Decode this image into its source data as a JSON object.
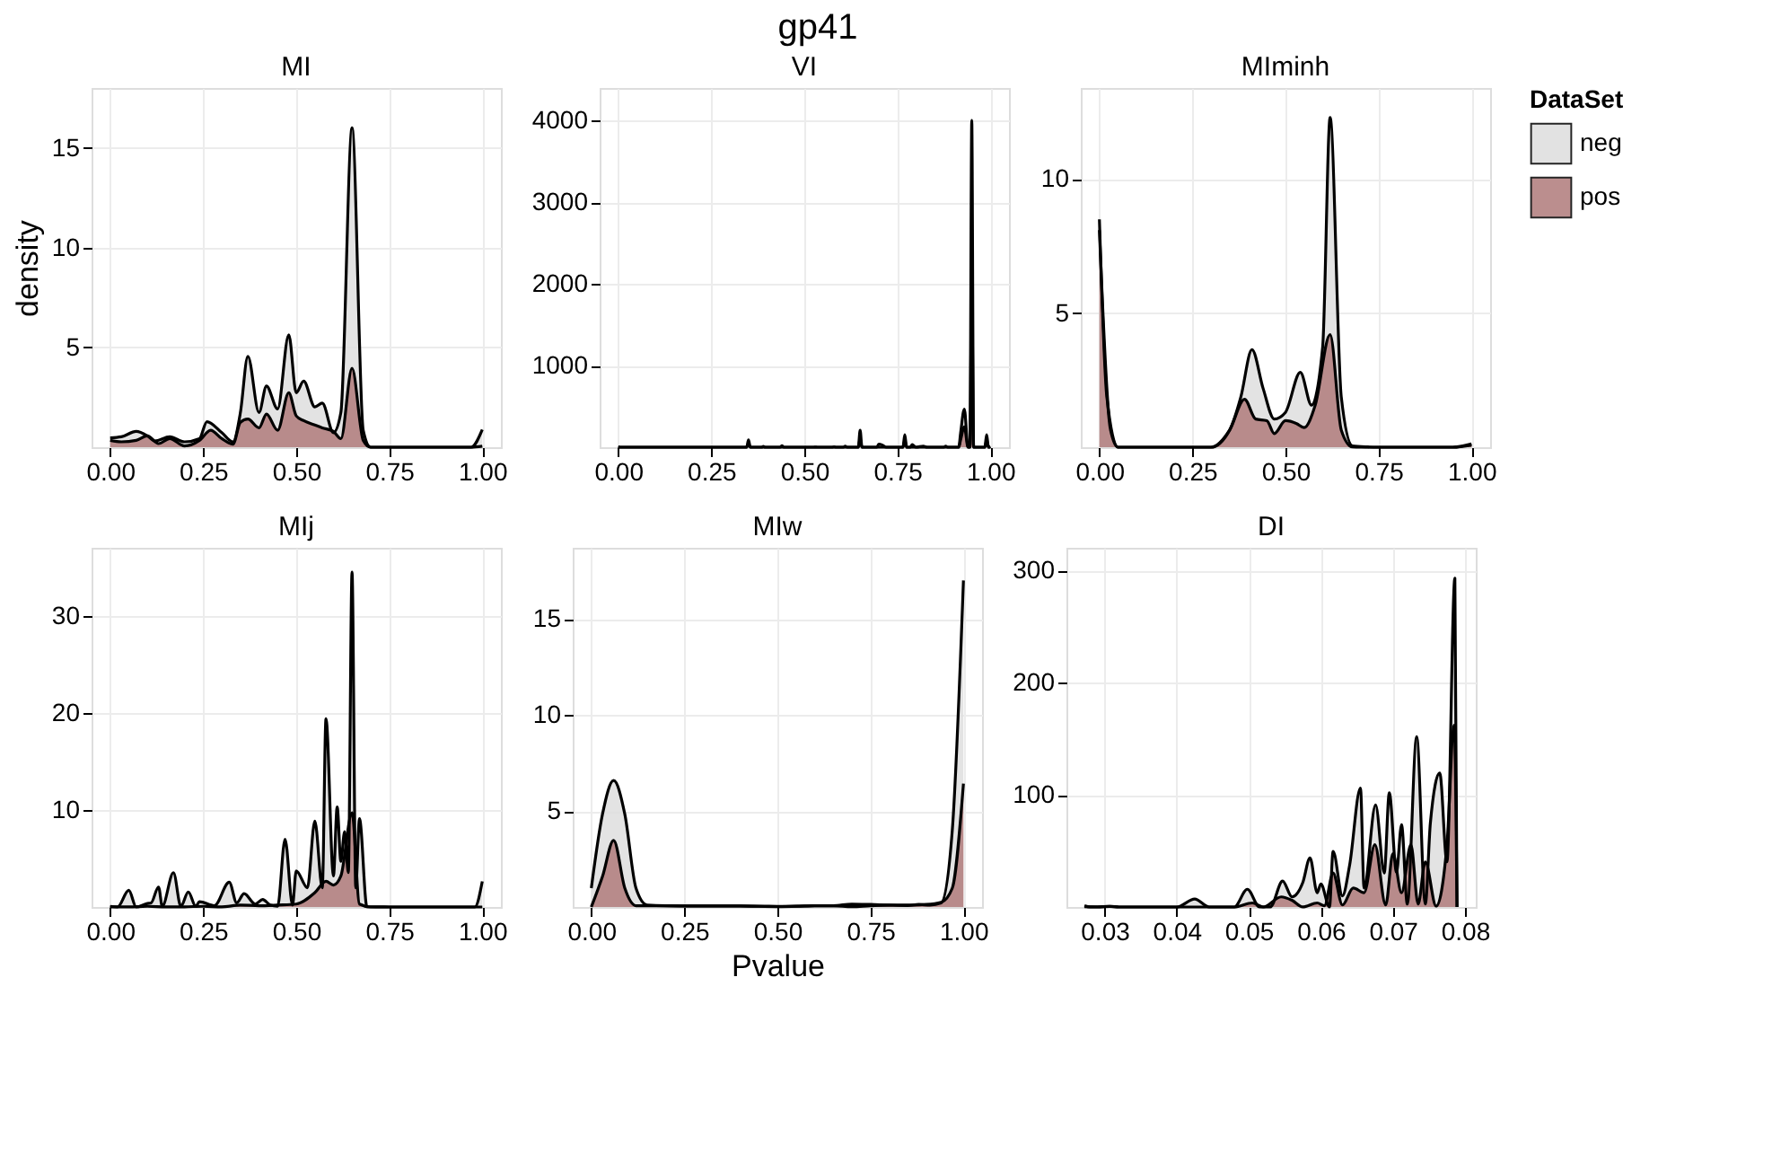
{
  "chart_data": [
    {
      "type": "area",
      "title": "MI",
      "ylabel": "density",
      "grid": true,
      "legend": "right",
      "legend_title": "DataSet",
      "xlim": [
        -0.05,
        1.05
      ],
      "ylim": [
        0,
        18
      ],
      "yticks": [
        5,
        10,
        15
      ],
      "xticks": [
        {
          "value": 0,
          "label": "0.00"
        },
        {
          "value": 0.25,
          "label": "0.25"
        },
        {
          "value": 0.5,
          "label": "0.50"
        },
        {
          "value": 0.75,
          "label": "0.75"
        },
        {
          "value": 1,
          "label": "1.00"
        }
      ],
      "series": [
        {
          "name": "neg",
          "color": "#dedede",
          "x": [
            0,
            0.03,
            0.07,
            0.1,
            0.12,
            0.16,
            0.2,
            0.24,
            0.26,
            0.3,
            0.33,
            0.35,
            0.37,
            0.4,
            0.42,
            0.45,
            0.48,
            0.5,
            0.52,
            0.55,
            0.57,
            0.6,
            0.62,
            0.65,
            0.68,
            0.7,
            0.75,
            0.97,
            1
          ],
          "values": [
            0.47,
            0.52,
            0.79,
            0.57,
            0.31,
            0.52,
            0.27,
            0.43,
            1.28,
            0.73,
            0.27,
            1.74,
            4.55,
            1.74,
            3.07,
            1.92,
            5.63,
            2.73,
            3.31,
            2.02,
            2.21,
            0.73,
            1.74,
            16,
            0.85,
            0,
            0,
            0,
            0.88
          ]
        },
        {
          "name": "pos",
          "color": "#b07b7b",
          "x": [
            0,
            0.03,
            0.07,
            0.1,
            0.13,
            0.16,
            0.2,
            0.24,
            0.27,
            0.3,
            0.33,
            0.35,
            0.37,
            0.4,
            0.42,
            0.45,
            0.48,
            0.5,
            0.52,
            0.55,
            0.57,
            0.6,
            0.62,
            0.65,
            0.68,
            0.7,
            0.75,
            0.97,
            1
          ],
          "values": [
            0.34,
            0.27,
            0.34,
            0.57,
            0.18,
            0.43,
            0.06,
            0.34,
            0.85,
            0.43,
            0.15,
            1.25,
            1.41,
            0.97,
            1.66,
            0.85,
            2.73,
            1.57,
            1.33,
            1.11,
            0.97,
            0.79,
            0.43,
            3.95,
            0.34,
            0,
            0,
            0,
            0.05
          ]
        }
      ]
    },
    {
      "type": "area",
      "title": "VI",
      "annotations": [
        "gp41"
      ],
      "grid": true,
      "legend": false,
      "xlim": [
        -0.05,
        1.05
      ],
      "ylim": [
        0,
        4400
      ],
      "yticks": [
        1000,
        2000,
        3000,
        4000
      ],
      "xticks": [
        {
          "value": 0,
          "label": "0.00"
        },
        {
          "value": 0.25,
          "label": "0.25"
        },
        {
          "value": 0.5,
          "label": "0.50"
        },
        {
          "value": 0.75,
          "label": "0.75"
        },
        {
          "value": 1,
          "label": "1.00"
        }
      ],
      "series": [
        {
          "color": "#dedede",
          "x": [
            0,
            0.005,
            0.345,
            0.35,
            0.355,
            0.385,
            0.39,
            0.395,
            0.435,
            0.44,
            0.445,
            0.525,
            0.53,
            0.535,
            0.575,
            0.58,
            0.585,
            0.605,
            0.61,
            0.615,
            0.645,
            0.65,
            0.655,
            0.695,
            0.7,
            0.71,
            0.72,
            0.725,
            0.765,
            0.77,
            0.775,
            0.785,
            0.79,
            0.8,
            0.82,
            0.83,
            0.875,
            0.88,
            0.885,
            0.915,
            0.92,
            0.93,
            0.94,
            0.945,
            0.95,
            0.955,
            0.96,
            0.985,
            0.99,
            0.995,
            1
          ],
          "values": [
            4,
            0,
            0,
            90,
            0,
            0,
            10,
            0,
            0,
            19,
            0,
            0,
            2,
            0,
            0,
            4,
            0,
            0,
            13,
            0,
            0,
            207,
            0,
            0,
            38,
            26,
            0,
            0,
            0,
            152,
            0,
            0,
            32,
            0,
            13,
            0,
            0,
            13,
            0,
            0,
            173,
            467,
            0,
            0,
            4003,
            0,
            0,
            0,
            152,
            0,
            8
          ]
        },
        {
          "color": "#b07b7b",
          "x": [
            0,
            0.005,
            0.345,
            0.35,
            0.355,
            0.645,
            0.65,
            0.655,
            0.765,
            0.77,
            0.775,
            0.915,
            0.92,
            0.93,
            0.94,
            0.945,
            0.95,
            0.955,
            0.96,
            0.985,
            0.99,
            0.995,
            1
          ],
          "values": [
            2,
            0,
            0,
            40,
            0,
            0,
            100,
            0,
            0,
            80,
            0,
            0,
            90,
            250,
            0,
            0,
            2000,
            0,
            0,
            0,
            80,
            0,
            4
          ]
        }
      ]
    },
    {
      "type": "area",
      "title": "MIminh",
      "grid": true,
      "legend": false,
      "xlim": [
        -0.05,
        1.05
      ],
      "ylim": [
        0,
        13.4
      ],
      "yticks": [
        5,
        10
      ],
      "xticks": [
        {
          "value": 0,
          "label": "0.00"
        },
        {
          "value": 0.25,
          "label": "0.25"
        },
        {
          "value": 0.5,
          "label": "0.50"
        },
        {
          "value": 0.75,
          "label": "0.75"
        },
        {
          "value": 1,
          "label": "1.00"
        }
      ],
      "series": [
        {
          "color": "#dedede",
          "x": [
            0,
            0.02,
            0.05,
            0.3,
            0.35,
            0.38,
            0.41,
            0.44,
            0.47,
            0.5,
            0.54,
            0.57,
            0.6,
            0.62,
            0.65,
            0.68,
            0.72,
            0.75,
            0.95,
            1
          ],
          "values": [
            8.5,
            1.87,
            0,
            0,
            0.64,
            1.87,
            3.64,
            2.19,
            1.05,
            1.3,
            2.79,
            1.57,
            3.75,
            12.3,
            1.87,
            0.05,
            0.01,
            0,
            0,
            0.12
          ]
        },
        {
          "color": "#b07b7b",
          "x": [
            0,
            0.03,
            0.05,
            0.3,
            0.35,
            0.39,
            0.42,
            0.45,
            0.47,
            0.5,
            0.53,
            0.55,
            0.58,
            0.62,
            0.65,
            0.68,
            0.7,
            0.95,
            1
          ],
          "values": [
            8.1,
            0.64,
            0,
            0,
            0.64,
            1.79,
            1.05,
            0.99,
            0.51,
            0.99,
            0.88,
            0.73,
            1.57,
            4.2,
            0.64,
            0.01,
            0,
            0,
            0.08
          ]
        }
      ]
    },
    {
      "type": "area",
      "title": "MIj",
      "grid": true,
      "legend": false,
      "xlim": [
        -0.05,
        1.05
      ],
      "ylim": [
        0,
        37
      ],
      "yticks": [
        10,
        20,
        30
      ],
      "xticks": [
        {
          "value": 0,
          "label": "0.00"
        },
        {
          "value": 0.25,
          "label": "0.25"
        },
        {
          "value": 0.5,
          "label": "0.50"
        },
        {
          "value": 0.75,
          "label": "0.75"
        },
        {
          "value": 1,
          "label": "1.00"
        }
      ],
      "series": [
        {
          "color": "#dedede",
          "x": [
            0,
            0.02,
            0.05,
            0.07,
            0.1,
            0.11,
            0.13,
            0.14,
            0.17,
            0.19,
            0.21,
            0.23,
            0.24,
            0.28,
            0.32,
            0.34,
            0.36,
            0.39,
            0.41,
            0.43,
            0.45,
            0.47,
            0.49,
            0.5,
            0.53,
            0.55,
            0.57,
            0.58,
            0.6,
            0.61,
            0.62,
            0.63,
            0.64,
            0.65,
            0.66,
            0.67,
            0.69,
            0.72,
            0.75,
            0.98,
            1
          ],
          "values": [
            0.07,
            0,
            1.72,
            0,
            0.36,
            0.42,
            2.06,
            0.07,
            3.54,
            0.07,
            1.55,
            0.07,
            0.55,
            0.13,
            2.55,
            0.42,
            1.37,
            0.3,
            0.78,
            0.2,
            0.07,
            6.98,
            0.2,
            3.72,
            1.98,
            8.85,
            1.98,
            19.4,
            3.2,
            10.3,
            4.7,
            7.76,
            3.54,
            34.5,
            1.98,
            9.1,
            0.03,
            0.01,
            0,
            0,
            2.64
          ]
        },
        {
          "color": "#b07b7b",
          "x": [
            0,
            0.05,
            0.1,
            0.15,
            0.2,
            0.25,
            0.3,
            0.35,
            0.4,
            0.45,
            0.5,
            0.55,
            0.58,
            0.6,
            0.62,
            0.65,
            0.67,
            0.7,
            1
          ],
          "values": [
            0.01,
            0.01,
            0.07,
            0.01,
            0.02,
            0.07,
            0.01,
            0.2,
            0.13,
            0.2,
            0.3,
            1.48,
            2.64,
            2.26,
            3.2,
            9.7,
            0.3,
            0,
            0
          ]
        }
      ]
    },
    {
      "type": "area",
      "title": "MIw",
      "xlabel": "Pvalue",
      "grid": true,
      "legend": false,
      "xlim": [
        -0.05,
        1.05
      ],
      "ylim": [
        0,
        18.7
      ],
      "yticks": [
        5,
        10,
        15
      ],
      "xticks": [
        {
          "value": 0,
          "label": "0.00"
        },
        {
          "value": 0.25,
          "label": "0.25"
        },
        {
          "value": 0.5,
          "label": "0.50"
        },
        {
          "value": 0.75,
          "label": "0.75"
        },
        {
          "value": 1,
          "label": "1.00"
        }
      ],
      "series": [
        {
          "color": "#dedede",
          "x": [
            0,
            0.03,
            0.06,
            0.09,
            0.12,
            0.15,
            0.2,
            0.3,
            0.4,
            0.45,
            0.5,
            0.55,
            0.6,
            0.65,
            0.7,
            0.75,
            0.8,
            0.85,
            0.88,
            0.91,
            0.94,
            0.97,
            1
          ],
          "values": [
            0.98,
            4.83,
            6.59,
            4.83,
            0.98,
            0.1,
            0.06,
            0.05,
            0.05,
            0.04,
            0.035,
            0.04,
            0.065,
            0.065,
            0.15,
            0.13,
            0.1,
            0.08,
            0.13,
            0.1,
            0.21,
            3.99,
            17
          ]
        },
        {
          "color": "#b07b7b",
          "x": [
            0,
            0.03,
            0.06,
            0.09,
            0.12,
            0.2,
            0.3,
            0.4,
            0.5,
            0.6,
            0.65,
            0.7,
            0.75,
            0.8,
            0.85,
            0.9,
            0.94,
            0.97,
            1
          ],
          "values": [
            0,
            1.59,
            3.47,
            0.98,
            0.065,
            0.06,
            0.05,
            0.05,
            0.02,
            0.06,
            0.065,
            0.015,
            0.065,
            0.1,
            0.1,
            0.13,
            0.24,
            0.98,
            6.42
          ]
        }
      ]
    },
    {
      "type": "area",
      "title": "DI",
      "grid": true,
      "legend": false,
      "xlim": [
        0.0247,
        0.0815
      ],
      "ylim": [
        0,
        320
      ],
      "yticks": [
        100,
        200,
        300
      ],
      "xticks": [
        0.03,
        0.04,
        0.05,
        0.06,
        0.07,
        0.08
      ],
      "series": [
        {
          "color": "#dedede",
          "x": [
            0.0272,
            0.028,
            0.029,
            0.0307,
            0.032,
            0.04,
            0.0425,
            0.0445,
            0.048,
            0.0498,
            0.0515,
            0.053,
            0.0547,
            0.056,
            0.0575,
            0.0585,
            0.0595,
            0.06,
            0.0612,
            0.0617,
            0.063,
            0.064,
            0.0655,
            0.066,
            0.0676,
            0.0688,
            0.0695,
            0.0705,
            0.0712,
            0.072,
            0.0733,
            0.0745,
            0.0752,
            0.0765,
            0.0775,
            0.0786,
            0.0789
          ],
          "values": [
            1.1,
            0.05,
            0.05,
            0.6,
            0,
            0,
            7.1,
            0,
            0,
            15.8,
            0,
            0.05,
            23.1,
            9,
            21.8,
            43.8,
            12.7,
            20.5,
            0.01,
            49.5,
            9.9,
            37.4,
            106,
            16.9,
            90.9,
            30.3,
            101.8,
            30.9,
            73.3,
            2.6,
            151.7,
            2.6,
            74.8,
            119.4,
            40.2,
            293,
            0
          ]
        },
        {
          "color": "#b07b7b",
          "x": [
            0.0272,
            0.029,
            0.0307,
            0.032,
            0.048,
            0.0505,
            0.052,
            0.0545,
            0.056,
            0.0575,
            0.0595,
            0.0605,
            0.0617,
            0.063,
            0.0645,
            0.066,
            0.0675,
            0.069,
            0.07,
            0.0712,
            0.0725,
            0.0735,
            0.0745,
            0.076,
            0.0775,
            0.0785,
            0.0789
          ],
          "values": [
            0.25,
            0,
            0.52,
            0,
            0,
            3.6,
            0,
            9,
            6,
            0.05,
            3.6,
            1.1,
            30.3,
            1.8,
            16.9,
            12.7,
            55.5,
            1.8,
            47.5,
            12.7,
            55.5,
            2.6,
            40.2,
            0.8,
            55.5,
            162,
            0
          ]
        }
      ]
    }
  ]
}
